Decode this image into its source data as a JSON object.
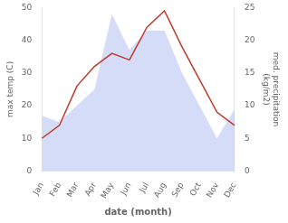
{
  "chart_data": {
    "type": "line",
    "categories": [
      "Jan",
      "Feb",
      "Mar",
      "Apr",
      "May",
      "Jun",
      "Jul",
      "Aug",
      "Sep",
      "Oct",
      "Nov",
      "Dec"
    ],
    "series": [
      {
        "type": "line",
        "axis": "y2",
        "color": "#c0392b",
        "values": [
          5.0,
          7.0,
          13.0,
          16.0,
          18.0,
          17.0,
          22.0,
          24.5,
          19.0,
          14.0,
          9.0,
          7.0
        ]
      },
      {
        "type": "area",
        "color": "#b3c0f0",
        "values": [
          17.0,
          15.0,
          20.0,
          25.0,
          48.0,
          37.0,
          43.0,
          43.0,
          30.0,
          20.0,
          10.0,
          19.0
        ]
      }
    ],
    "xlabel": "date (month)",
    "ylabel": "max temp (C)",
    "y2label": "med. precipitation\n(kg/m2)",
    "ylim": [
      0,
      50
    ],
    "yticks": [
      0,
      10,
      20,
      30,
      40,
      50
    ],
    "y2lim": [
      0,
      25
    ],
    "y2ticks": [
      0,
      5,
      10,
      15,
      20,
      25
    ],
    "grid": false
  }
}
